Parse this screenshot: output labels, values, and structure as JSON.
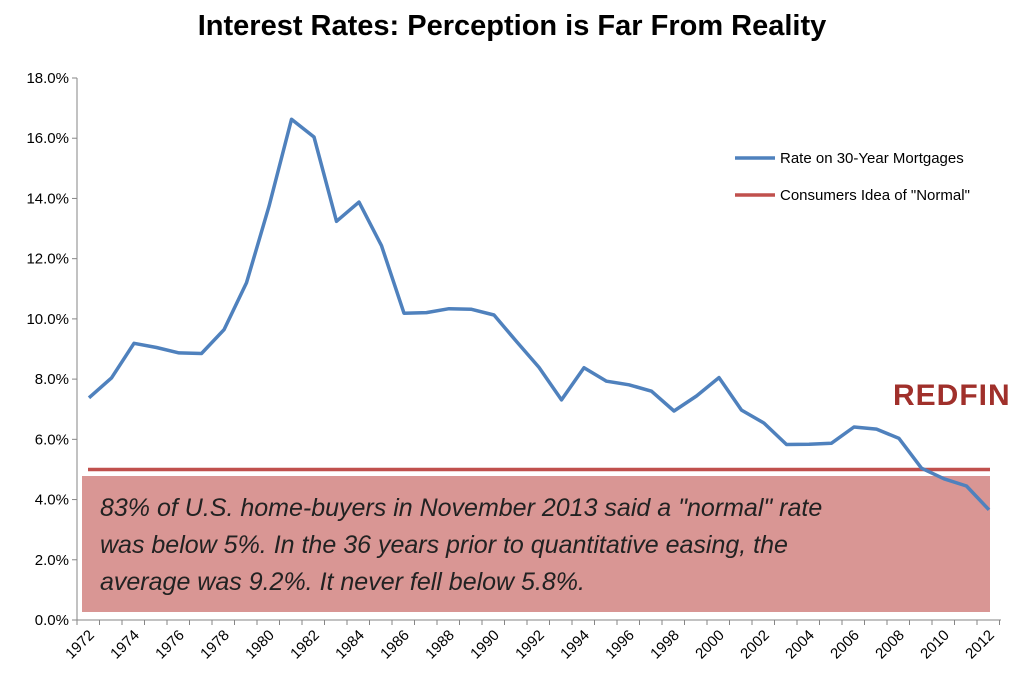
{
  "chart_data": {
    "type": "line",
    "title": "Interest Rates: Perception is Far From Reality",
    "x": [
      1972,
      1973,
      1974,
      1975,
      1976,
      1977,
      1978,
      1979,
      1980,
      1981,
      1982,
      1983,
      1984,
      1985,
      1986,
      1987,
      1988,
      1989,
      1990,
      1991,
      1992,
      1993,
      1994,
      1995,
      1996,
      1997,
      1998,
      1999,
      2000,
      2001,
      2002,
      2003,
      2004,
      2005,
      2006,
      2007,
      2008,
      2009,
      2010,
      2011,
      2012
    ],
    "x_tick_labels": [
      "1972",
      "1974",
      "1976",
      "1978",
      "1980",
      "1982",
      "1984",
      "1986",
      "1988",
      "1990",
      "1992",
      "1994",
      "1996",
      "1998",
      "2000",
      "2002",
      "2004",
      "2006",
      "2008",
      "2010",
      "2012"
    ],
    "y_tick_labels": [
      "0.0%",
      "2.0%",
      "4.0%",
      "6.0%",
      "8.0%",
      "10.0%",
      "12.0%",
      "14.0%",
      "16.0%",
      "18.0%"
    ],
    "ylim": [
      0,
      18
    ],
    "series": [
      {
        "name": "Rate on 30-Year Mortgages",
        "color": "#4f81bd",
        "values": [
          7.38,
          8.04,
          9.19,
          9.05,
          8.87,
          8.85,
          9.64,
          11.2,
          13.74,
          16.63,
          16.04,
          13.24,
          13.88,
          12.43,
          10.19,
          10.21,
          10.34,
          10.32,
          10.13,
          9.25,
          8.39,
          7.31,
          8.38,
          7.93,
          7.81,
          7.6,
          6.94,
          7.44,
          8.05,
          6.97,
          6.54,
          5.83,
          5.84,
          5.87,
          6.41,
          6.34,
          6.03,
          5.04,
          4.69,
          4.45,
          3.66
        ]
      },
      {
        "name": "Consumers Idea of \"Normal\"",
        "color": "#c0504d",
        "values": [
          5,
          5,
          5,
          5,
          5,
          5,
          5,
          5,
          5,
          5,
          5,
          5,
          5,
          5,
          5,
          5,
          5,
          5,
          5,
          5,
          5,
          5,
          5,
          5,
          5,
          5,
          5,
          5,
          5,
          5,
          5,
          5,
          5,
          5,
          5,
          5,
          5,
          5,
          5,
          5,
          5
        ]
      }
    ],
    "legend": "right",
    "grid": false,
    "annotation": {
      "lines": [
        "83% of U.S. home-buyers in November 2013 said a \"normal\" rate",
        "was below 5%. In the 36 years prior to quantitative easing, the",
        "average was 9.2%. It never fell below 5.8%."
      ],
      "background": "#d99694"
    }
  },
  "brand": {
    "text": "REDFIN",
    "color": "#a0302b"
  }
}
